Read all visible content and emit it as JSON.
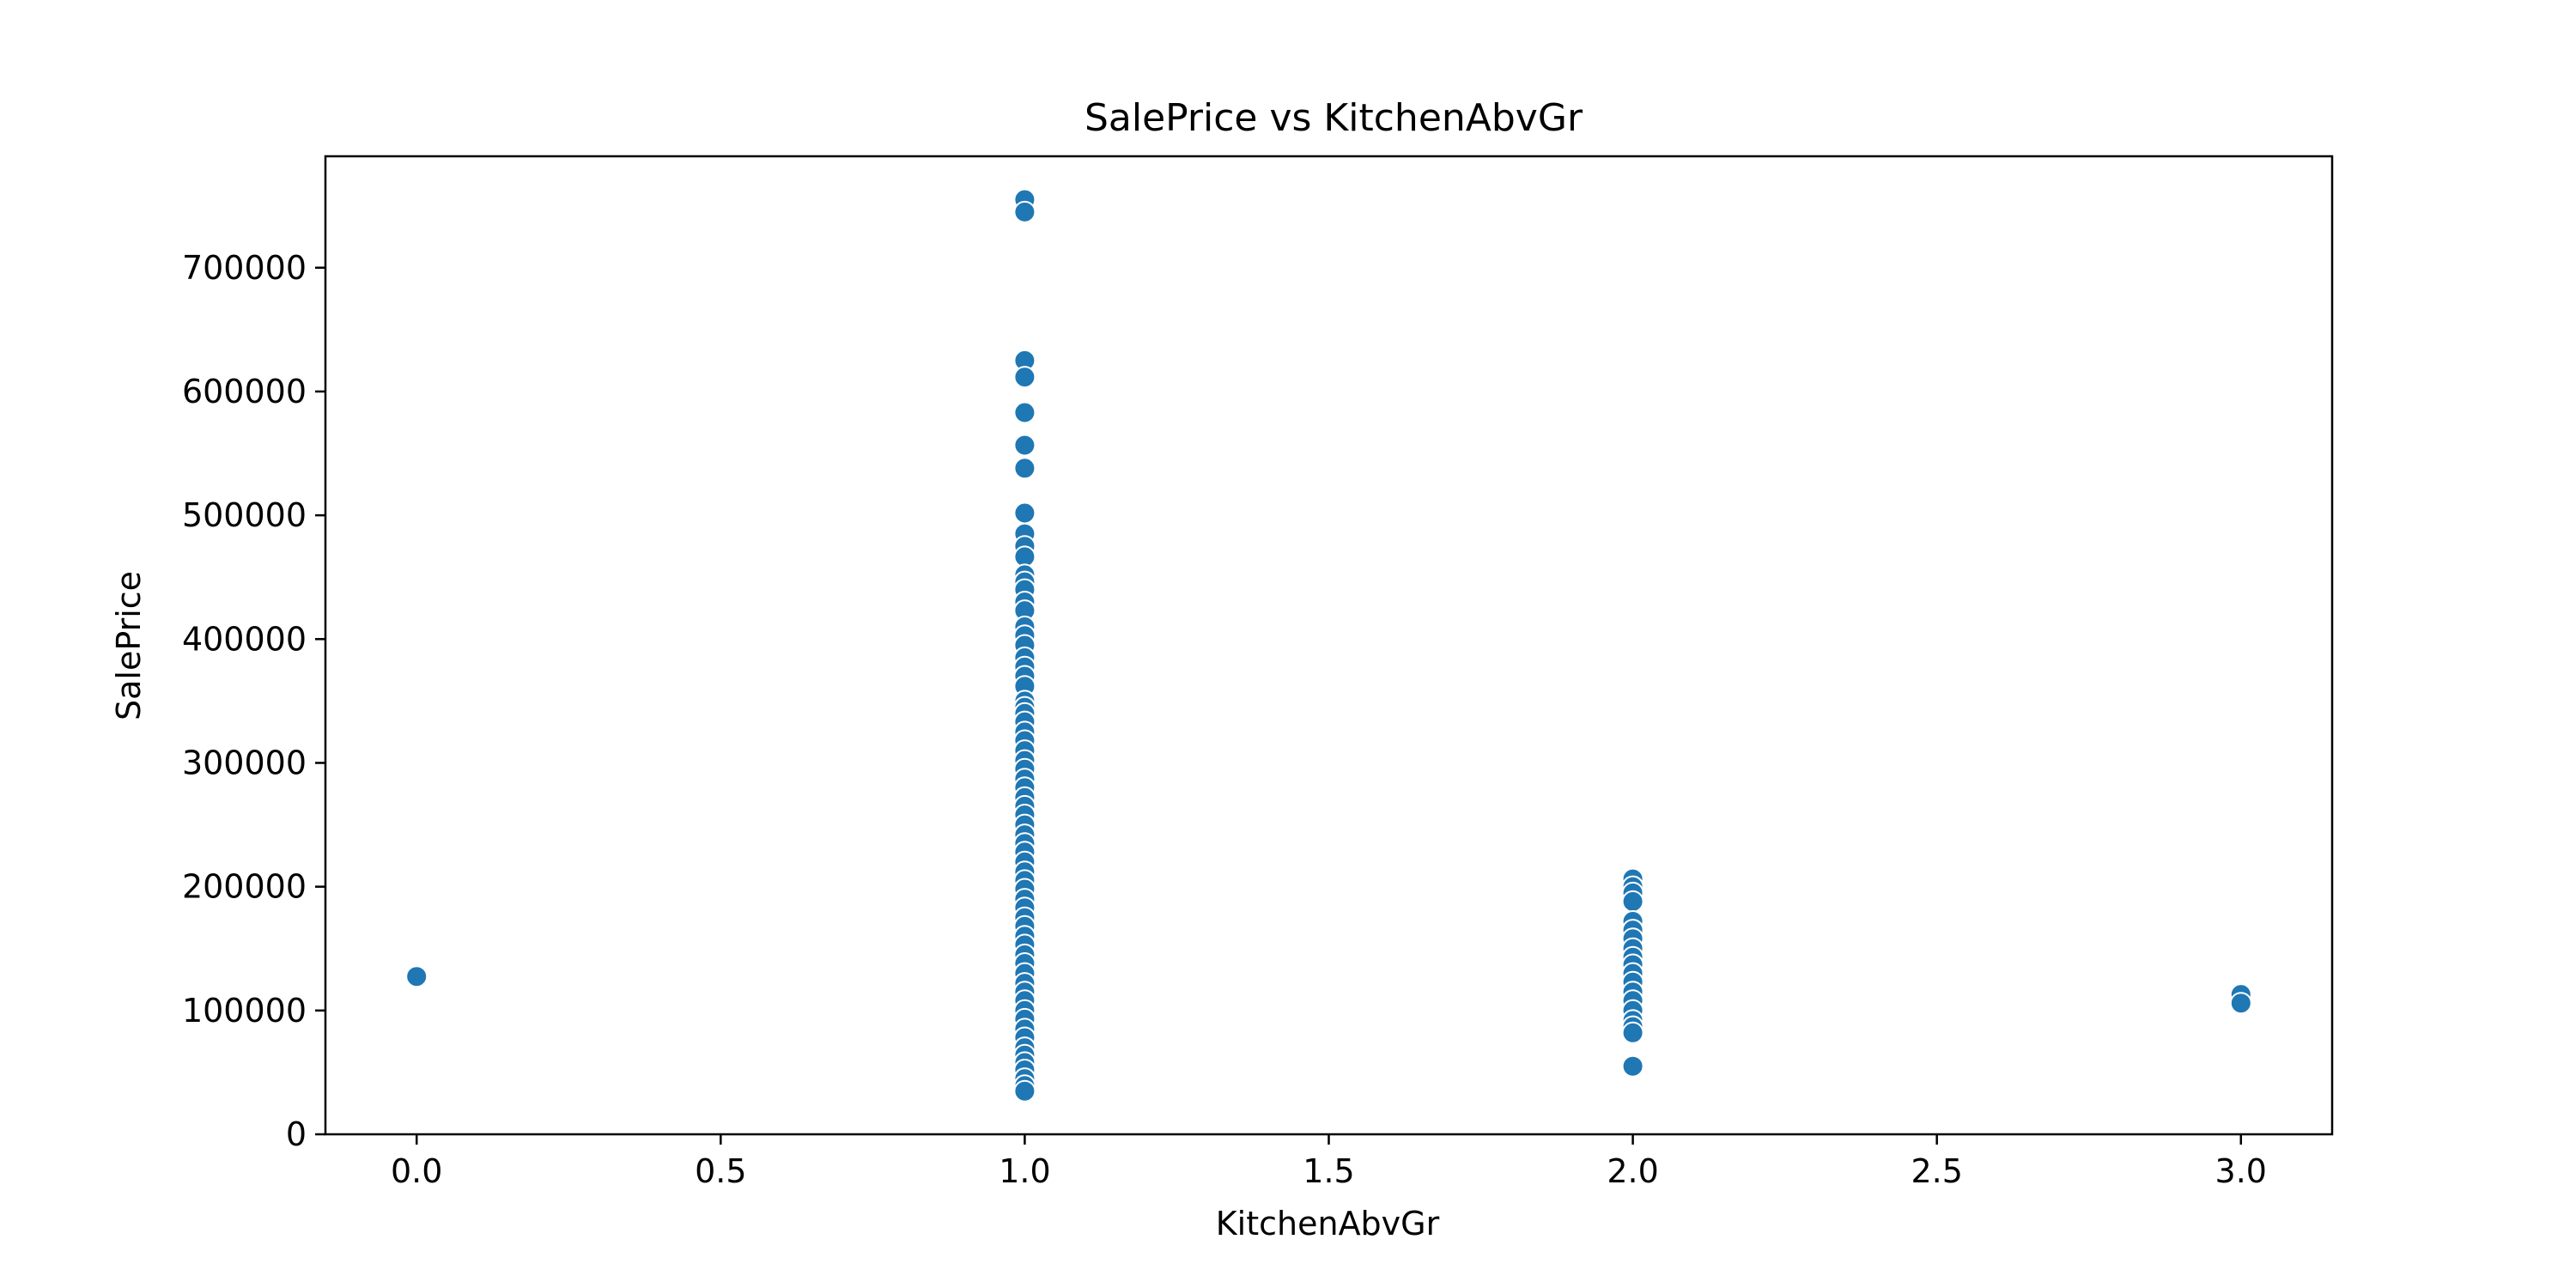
{
  "chart_data": {
    "type": "scatter",
    "title": "SalePrice vs KitchenAbvGr",
    "xlabel": "KitchenAbvGr",
    "ylabel": "SalePrice",
    "xlim": [
      -0.15,
      3.15
    ],
    "ylim": [
      0,
      790000
    ],
    "xticks": [
      0.0,
      0.5,
      1.0,
      1.5,
      2.0,
      2.5,
      3.0
    ],
    "xtick_labels": [
      "0.0",
      "0.5",
      "1.0",
      "1.5",
      "2.0",
      "2.5",
      "3.0"
    ],
    "yticks": [
      0,
      100000,
      200000,
      300000,
      400000,
      500000,
      600000,
      700000
    ],
    "ytick_labels": [
      "0",
      "100000",
      "200000",
      "300000",
      "400000",
      "500000",
      "600000",
      "700000"
    ],
    "grid": false,
    "marker_color": "#1f77b4",
    "points": [
      {
        "x": 0,
        "y": 127500
      },
      {
        "x": 1,
        "y": 755000
      },
      {
        "x": 1,
        "y": 745000
      },
      {
        "x": 1,
        "y": 625000
      },
      {
        "x": 1,
        "y": 611657
      },
      {
        "x": 1,
        "y": 582933
      },
      {
        "x": 1,
        "y": 556581
      },
      {
        "x": 1,
        "y": 538000
      },
      {
        "x": 1,
        "y": 501837
      },
      {
        "x": 1,
        "y": 485000
      },
      {
        "x": 1,
        "y": 475000
      },
      {
        "x": 1,
        "y": 466500
      },
      {
        "x": 1,
        "y": 451950
      },
      {
        "x": 1,
        "y": 446261
      },
      {
        "x": 1,
        "y": 440000
      },
      {
        "x": 1,
        "y": 430000
      },
      {
        "x": 1,
        "y": 423000
      },
      {
        "x": 1,
        "y": 410000
      },
      {
        "x": 1,
        "y": 402861
      },
      {
        "x": 1,
        "y": 395000
      },
      {
        "x": 1,
        "y": 385000
      },
      {
        "x": 1,
        "y": 377500
      },
      {
        "x": 1,
        "y": 370000
      },
      {
        "x": 1,
        "y": 361919
      },
      {
        "x": 1,
        "y": 350000
      },
      {
        "x": 1,
        "y": 345000
      },
      {
        "x": 1,
        "y": 340000
      },
      {
        "x": 1,
        "y": 333168
      },
      {
        "x": 1,
        "y": 325000
      },
      {
        "x": 1,
        "y": 318000
      },
      {
        "x": 1,
        "y": 310000
      },
      {
        "x": 1,
        "y": 302000
      },
      {
        "x": 1,
        "y": 295000
      },
      {
        "x": 1,
        "y": 287000
      },
      {
        "x": 1,
        "y": 280000
      },
      {
        "x": 1,
        "y": 272000
      },
      {
        "x": 1,
        "y": 265000
      },
      {
        "x": 1,
        "y": 258000
      },
      {
        "x": 1,
        "y": 250000
      },
      {
        "x": 1,
        "y": 242000
      },
      {
        "x": 1,
        "y": 235000
      },
      {
        "x": 1,
        "y": 228000
      },
      {
        "x": 1,
        "y": 220000
      },
      {
        "x": 1,
        "y": 212000
      },
      {
        "x": 1,
        "y": 205000
      },
      {
        "x": 1,
        "y": 198000
      },
      {
        "x": 1,
        "y": 190000
      },
      {
        "x": 1,
        "y": 183000
      },
      {
        "x": 1,
        "y": 175000
      },
      {
        "x": 1,
        "y": 168000
      },
      {
        "x": 1,
        "y": 160000
      },
      {
        "x": 1,
        "y": 153000
      },
      {
        "x": 1,
        "y": 145000
      },
      {
        "x": 1,
        "y": 138000
      },
      {
        "x": 1,
        "y": 130000
      },
      {
        "x": 1,
        "y": 122000
      },
      {
        "x": 1,
        "y": 115000
      },
      {
        "x": 1,
        "y": 108000
      },
      {
        "x": 1,
        "y": 100000
      },
      {
        "x": 1,
        "y": 93000
      },
      {
        "x": 1,
        "y": 85000
      },
      {
        "x": 1,
        "y": 78000
      },
      {
        "x": 1,
        "y": 70000
      },
      {
        "x": 1,
        "y": 64000
      },
      {
        "x": 1,
        "y": 58000
      },
      {
        "x": 1,
        "y": 52000
      },
      {
        "x": 1,
        "y": 45000
      },
      {
        "x": 1,
        "y": 39300
      },
      {
        "x": 1,
        "y": 34900
      },
      {
        "x": 2,
        "y": 206300
      },
      {
        "x": 2,
        "y": 200000
      },
      {
        "x": 2,
        "y": 195000
      },
      {
        "x": 2,
        "y": 188000
      },
      {
        "x": 2,
        "y": 172000
      },
      {
        "x": 2,
        "y": 165000
      },
      {
        "x": 2,
        "y": 158000
      },
      {
        "x": 2,
        "y": 150000
      },
      {
        "x": 2,
        "y": 143000
      },
      {
        "x": 2,
        "y": 137000
      },
      {
        "x": 2,
        "y": 130000
      },
      {
        "x": 2,
        "y": 123000
      },
      {
        "x": 2,
        "y": 115000
      },
      {
        "x": 2,
        "y": 108000
      },
      {
        "x": 2,
        "y": 100000
      },
      {
        "x": 2,
        "y": 92000
      },
      {
        "x": 2,
        "y": 87000
      },
      {
        "x": 2,
        "y": 82000
      },
      {
        "x": 2,
        "y": 55000
      },
      {
        "x": 3,
        "y": 113000
      },
      {
        "x": 3,
        "y": 106000
      }
    ]
  }
}
